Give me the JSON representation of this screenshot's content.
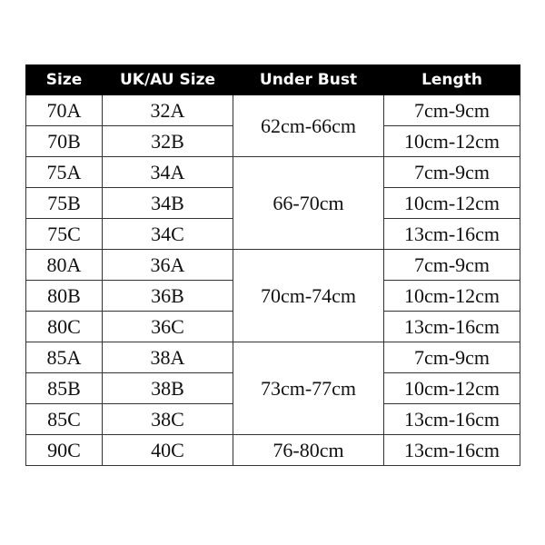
{
  "headers": [
    "Size",
    "UK/AU Size",
    "Under Bust",
    "Length"
  ],
  "rows": [
    {
      "size": "70A",
      "uk_au": "32A",
      "length": "7cm-9cm"
    },
    {
      "size": "70B",
      "uk_au": "32B",
      "length": "10cm-12cm"
    },
    {
      "size": "75A",
      "uk_au": "34A",
      "length": "7cm-9cm"
    },
    {
      "size": "75B",
      "uk_au": "34B",
      "length": "10cm-12cm"
    },
    {
      "size": "75C",
      "uk_au": "34C",
      "length": "13cm-16cm"
    },
    {
      "size": "80A",
      "uk_au": "36A",
      "length": "7cm-9cm"
    },
    {
      "size": "80B",
      "uk_au": "36B",
      "length": "10cm-12cm"
    },
    {
      "size": "80C",
      "uk_au": "36C",
      "length": "13cm-16cm"
    },
    {
      "size": "85A",
      "uk_au": "38A",
      "length": "7cm-9cm"
    },
    {
      "size": "85B",
      "uk_au": "38B",
      "length": "10cm-12cm"
    },
    {
      "size": "85C",
      "uk_au": "38C",
      "length": "13cm-16cm"
    },
    {
      "size": "90C",
      "uk_au": "40C",
      "length": "13cm-16cm"
    }
  ],
  "under_bust_groups": [
    {
      "value": "62cm-66cm",
      "rows": 2
    },
    {
      "value": "66-70cm",
      "rows": 3
    },
    {
      "value": "70cm-74cm",
      "rows": 3
    },
    {
      "value": "73cm-77cm",
      "rows": 3
    },
    {
      "value": "76-80cm",
      "rows": 1
    }
  ],
  "colors": {
    "header_bg": "#000000",
    "header_text": "#ffffff",
    "border": "#333333"
  }
}
